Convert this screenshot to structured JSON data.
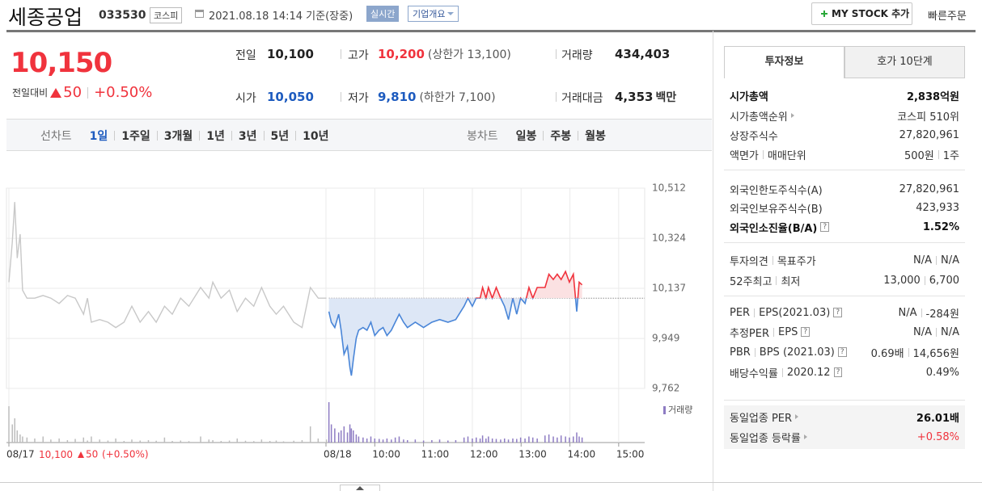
{
  "header": {
    "title": "세종공업",
    "code": "033530",
    "market": "코스피",
    "timestamp": "2021.08.18 14:14 기준(장중)",
    "realtime": "실시간",
    "company_info": "기업개요",
    "mystock": "MY STOCK 추가",
    "quick_order": "빠른주문"
  },
  "quote": {
    "price": "10,150",
    "change_label": "전일대비",
    "change": "50",
    "change_pct": "+0.50%",
    "stats": [
      {
        "label": "전일",
        "value": "10,100"
      },
      {
        "label": "고가",
        "value": "10,200",
        "note": "(상한가 13,100)",
        "color": "#f0333d"
      },
      {
        "label": "거래량",
        "value": "434,403"
      },
      {
        "label": "시가",
        "value": "10,050",
        "color": "#1d5bbf"
      },
      {
        "label": "저가",
        "value": "9,810",
        "note": "(하한가 7,100)",
        "color": "#1d5bbf"
      },
      {
        "label": "거래대금",
        "value": "4,353",
        "unit": "백만"
      }
    ]
  },
  "chart_tabs": {
    "line_label": "선차트",
    "line": [
      "1일",
      "1주일",
      "3개월",
      "1년",
      "3년",
      "5년",
      "10년"
    ],
    "line_selected": 0,
    "candle_label": "봉차트",
    "candle": [
      "일봉",
      "주봉",
      "월봉"
    ]
  },
  "chart_data": {
    "type": "line",
    "xlim": [
      0,
      13
    ],
    "xticks": [
      {
        "value": 0,
        "label": "08/17"
      },
      {
        "value": 6.5,
        "label": "08/18"
      },
      {
        "value": 7.5,
        "label": "10:00"
      },
      {
        "value": 8.5,
        "label": "11:00"
      },
      {
        "value": 9.5,
        "label": "12:00"
      },
      {
        "value": 10.5,
        "label": "13:00"
      },
      {
        "value": 11.5,
        "label": "14:00"
      },
      {
        "value": 12.5,
        "label": "15:00"
      }
    ],
    "ylim": [
      9762,
      10512
    ],
    "yticks": [
      {
        "value": 10512,
        "label": "10,512"
      },
      {
        "value": 10324,
        "label": "10,324"
      },
      {
        "value": 10137,
        "label": "10,137"
      },
      {
        "value": 9949,
        "label": "9,949"
      },
      {
        "value": 9762,
        "label": "9,762"
      }
    ],
    "prev_close": {
      "value": 10100,
      "label": "10,100"
    },
    "prev_change": "50",
    "prev_change_pct": "(+0.50%)",
    "volume_label": "거래량",
    "vlim": [
      0,
      20000
    ],
    "series": [
      {
        "color": "#c8c8c8",
        "volume_color": "#bdbdbd",
        "x": [
          0,
          0.07,
          0.12,
          0.17,
          0.23,
          0.28,
          0.37,
          0.53,
          0.7,
          0.86,
          1.03,
          1.2,
          1.36,
          1.53,
          1.61,
          1.69,
          1.86,
          2.03,
          2.19,
          2.36,
          2.52,
          2.69,
          2.86,
          3.02,
          3.19,
          3.35,
          3.52,
          3.69,
          3.93,
          4.1,
          4.18,
          4.35,
          4.52,
          4.68,
          4.85,
          5.02,
          5.18,
          5.35,
          5.48,
          5.63,
          5.84,
          6.01,
          6.18,
          6.34,
          6.51
        ],
        "values": [
          10160,
          10310,
          10460,
          10250,
          10340,
          10130,
          10100,
          10100,
          10110,
          10100,
          10080,
          10110,
          10100,
          10040,
          10100,
          10010,
          10020,
          10010,
          9990,
          10010,
          10070,
          10010,
          10050,
          10010,
          10070,
          10040,
          10100,
          10070,
          10140,
          10100,
          10160,
          10100,
          10130,
          10050,
          10100,
          10070,
          10140,
          10070,
          10040,
          10070,
          10010,
          9990,
          10140,
          10100,
          10100
        ],
        "volume": [
          18000,
          9000,
          12000,
          6000,
          4000,
          3000,
          2500,
          2000,
          3000,
          1500,
          2000,
          1200,
          1800,
          2500,
          1000,
          3000,
          1500,
          1000,
          2000,
          800,
          1500,
          1000,
          1200,
          900,
          2500,
          800,
          1000,
          700,
          3000,
          1500,
          1200,
          800,
          1000,
          2000,
          900,
          700,
          1500,
          800,
          1000,
          600,
          900,
          1200,
          8000,
          2000,
          1500
        ]
      },
      {
        "color": "#4a86d8",
        "fill": "#dde7f6",
        "color_up": "#f0333d",
        "fill_up": "#fbe1e2",
        "volume_color": "#8e7cc3",
        "x": [
          6.56,
          6.61,
          6.68,
          6.76,
          6.81,
          6.87,
          6.94,
          6.99,
          7.02,
          7.06,
          7.12,
          7.17,
          7.26,
          7.34,
          7.42,
          7.5,
          7.59,
          7.67,
          7.75,
          7.84,
          7.92,
          8.0,
          8.09,
          8.17,
          8.33,
          8.5,
          8.67,
          8.83,
          9.0,
          9.16,
          9.33,
          9.41,
          9.5,
          9.58,
          9.66,
          9.71,
          9.78,
          9.83,
          9.91,
          9.99,
          10.08,
          10.16,
          10.24,
          10.33,
          10.41,
          10.49,
          10.58,
          10.66,
          10.74,
          10.83,
          10.99,
          11.07,
          11.16,
          11.24,
          11.32,
          11.41,
          11.49,
          11.57,
          11.64,
          11.69,
          11.75
        ],
        "values": [
          10050,
          10010,
          9990,
          10040,
          9980,
          9890,
          9920,
          9840,
          9810,
          9870,
          9950,
          9980,
          9990,
          9980,
          10010,
          9960,
          9980,
          9990,
          9960,
          9980,
          10010,
          10040,
          10010,
          9990,
          10010,
          9990,
          10010,
          10020,
          10010,
          10020,
          10070,
          10100,
          10070,
          10100,
          10100,
          10140,
          10100,
          10140,
          10100,
          10140,
          10100,
          10070,
          10020,
          10100,
          10040,
          10100,
          10080,
          10140,
          10100,
          10140,
          10140,
          10190,
          10170,
          10190,
          10170,
          10200,
          10160,
          10190,
          10050,
          10160,
          10150
        ],
        "volume": [
          20000,
          9000,
          7000,
          5000,
          6000,
          8000,
          5000,
          9000,
          7000,
          6000,
          4000,
          3000,
          2500,
          2000,
          3000,
          2000,
          1800,
          1500,
          2000,
          1500,
          2500,
          3000,
          1500,
          1200,
          1500,
          1000,
          1200,
          1500,
          1000,
          1200,
          2500,
          3000,
          2000,
          2500,
          2000,
          3500,
          2000,
          3000,
          2000,
          1800,
          1500,
          2000,
          1500,
          2000,
          1800,
          2500,
          2000,
          3000,
          2500,
          2000,
          3500,
          4000,
          3000,
          2500,
          3500,
          3000,
          2500,
          3000,
          5000,
          3000,
          2500
        ]
      }
    ]
  },
  "invest_tabs": [
    "투자정보",
    "호가 10단계"
  ],
  "invest_selected": 0,
  "invest_info": {
    "help_icon": "?",
    "groups": [
      {
        "rows": [
          {
            "labels": [
              "시가총액"
            ],
            "values": [
              "2,838억원"
            ],
            "bold": "all"
          },
          {
            "labels": [
              "시가총액순위"
            ],
            "arrow": true,
            "values": [
              "코스피 510위"
            ]
          },
          {
            "labels": [
              "상장주식수"
            ],
            "values": [
              "27,820,961"
            ]
          },
          {
            "labels": [
              "액면가",
              "매매단위"
            ],
            "values": [
              "500원",
              "1주"
            ]
          }
        ]
      },
      {
        "rows": [
          {
            "labels": [
              "외국인한도주식수(A)"
            ],
            "values": [
              "27,820,961"
            ]
          },
          {
            "labels": [
              "외국인보유주식수(B)"
            ],
            "values": [
              "423,933"
            ]
          },
          {
            "labels": [
              "외국인소진율(B/A)"
            ],
            "help": true,
            "values": [
              "1.52%"
            ],
            "bold": "all"
          }
        ]
      },
      {
        "rows": [
          {
            "labels": [
              "투자의견",
              "목표주가"
            ],
            "values": [
              "N/A",
              "N/A"
            ]
          },
          {
            "labels": [
              "52주최고",
              "최저"
            ],
            "values": [
              "13,000",
              "6,700"
            ]
          }
        ]
      },
      {
        "rows": [
          {
            "labels": [
              "PER",
              "EPS(2021.03)"
            ],
            "help": true,
            "values": [
              "N/A",
              "-284원"
            ]
          },
          {
            "labels": [
              "추정PER",
              "EPS"
            ],
            "help": true,
            "values": [
              "N/A",
              "N/A"
            ]
          },
          {
            "labels": [
              "PBR",
              "BPS (2021.03)"
            ],
            "help": true,
            "values": [
              "0.69배",
              "14,656원"
            ]
          },
          {
            "labels": [
              "배당수익률",
              "2020.12"
            ],
            "help": true,
            "values": [
              "0.49%"
            ]
          }
        ]
      },
      {
        "shaded": true,
        "rows": [
          {
            "labels": [
              "동일업종 PER"
            ],
            "arrow": true,
            "values": [
              "26.01배"
            ],
            "bold": "value"
          },
          {
            "labels": [
              "동일업종 등락률"
            ],
            "arrow": true,
            "values": [
              "+0.58%"
            ],
            "color": "#f0333d"
          }
        ]
      }
    ]
  }
}
